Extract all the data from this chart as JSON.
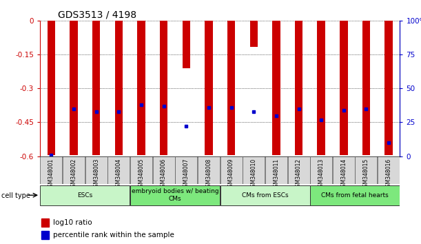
{
  "title": "GDS3513 / 4198",
  "samples": [
    "GSM348001",
    "GSM348002",
    "GSM348003",
    "GSM348004",
    "GSM348005",
    "GSM348006",
    "GSM348007",
    "GSM348008",
    "GSM348009",
    "GSM348010",
    "GSM348011",
    "GSM348012",
    "GSM348013",
    "GSM348014",
    "GSM348015",
    "GSM348016"
  ],
  "log10_ratio": [
    -0.595,
    -0.595,
    -0.595,
    -0.595,
    -0.595,
    -0.595,
    -0.21,
    -0.595,
    -0.595,
    -0.115,
    -0.595,
    -0.595,
    -0.595,
    -0.595,
    -0.595,
    -0.595
  ],
  "percentile_rank": [
    1.0,
    35.0,
    33.0,
    33.0,
    38.0,
    37.0,
    22.0,
    36.0,
    36.0,
    33.0,
    30.0,
    35.0,
    27.0,
    34.0,
    35.0,
    10.0
  ],
  "ylim_left": [
    -0.6,
    0.0
  ],
  "ylim_right": [
    0,
    100
  ],
  "yticks_left": [
    0,
    -0.15,
    -0.3,
    -0.45,
    -0.6
  ],
  "yticks_right": [
    100,
    75,
    50,
    25,
    0
  ],
  "cell_groups": [
    {
      "label": "ESCs",
      "start": 0,
      "end": 3,
      "color": "#c8f5c8"
    },
    {
      "label": "embryoid bodies w/ beating\nCMs",
      "start": 4,
      "end": 7,
      "color": "#7de87d"
    },
    {
      "label": "CMs from ESCs",
      "start": 8,
      "end": 11,
      "color": "#c8f5c8"
    },
    {
      "label": "CMs from fetal hearts",
      "start": 12,
      "end": 15,
      "color": "#7de87d"
    }
  ],
  "bar_color": "#cc0000",
  "dot_color": "#0000cc",
  "bar_width": 0.35,
  "tick_label_fontsize": 7.5,
  "title_fontsize": 10,
  "axis_label_color_left": "#cc0000",
  "axis_label_color_right": "#0000cc",
  "sample_bg_color": "#d8d8d8",
  "legend_items": [
    {
      "color": "#cc0000",
      "label": "log10 ratio"
    },
    {
      "color": "#0000cc",
      "label": "percentile rank within the sample"
    }
  ]
}
